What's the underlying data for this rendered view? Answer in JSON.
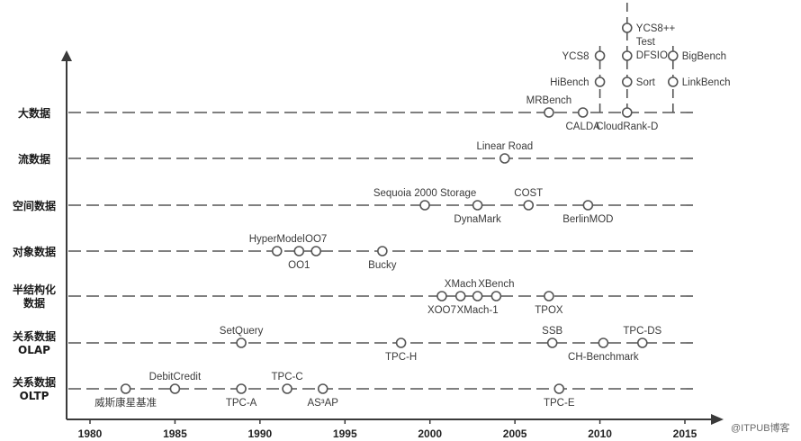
{
  "chart_data": {
    "type": "scatter",
    "x_axis": {
      "ticks": [
        1980,
        1985,
        1990,
        1995,
        2000,
        2005,
        2010,
        2015
      ]
    },
    "categories": [
      "大数据",
      "流数据",
      "空间数据",
      "对象数据",
      "半结构化\n数据",
      "关系数据\nOLAP",
      "关系数据\nOLTP"
    ],
    "benchmarks": [
      {
        "name": "MRBench",
        "category": 0,
        "year": 2007.0,
        "label_pos": "above"
      },
      {
        "name": "CALDA",
        "category": 0,
        "year": 2009.0,
        "label_pos": "below"
      },
      {
        "name": "HiBench",
        "category": 0,
        "year": 2010.0,
        "level": 1,
        "label_pos": "left"
      },
      {
        "name": "YCS8",
        "category": 0,
        "year": 2010.0,
        "level": 2,
        "label_pos": "left"
      },
      {
        "name": "CloudRank-D",
        "category": 0,
        "year": 2011.6,
        "label_pos": "below"
      },
      {
        "name": "Sort",
        "category": 0,
        "year": 2011.6,
        "level": 1,
        "label_pos": "right"
      },
      {
        "name": "Test\nDFSIO",
        "category": 0,
        "year": 2011.6,
        "level": 2,
        "label_pos": "right"
      },
      {
        "name": "YCS8++",
        "category": 0,
        "year": 2011.6,
        "level": 3,
        "label_pos": "right"
      },
      {
        "name": "LinkBench",
        "category": 0,
        "year": 2014.3,
        "level": 1,
        "label_pos": "right"
      },
      {
        "name": "BigBench",
        "category": 0,
        "year": 2014.3,
        "level": 2,
        "label_pos": "right"
      },
      {
        "name": "Linear Road",
        "category": 1,
        "year": 2004.4,
        "label_pos": "above"
      },
      {
        "name": "Sequoia 2000 Storage",
        "category": 2,
        "year": 1999.7,
        "label_pos": "above"
      },
      {
        "name": "DynaMark",
        "category": 2,
        "year": 2002.8,
        "label_pos": "below"
      },
      {
        "name": "COST",
        "category": 2,
        "year": 2005.8,
        "label_pos": "above"
      },
      {
        "name": "BerlinMOD",
        "category": 2,
        "year": 2009.3,
        "label_pos": "below"
      },
      {
        "name": "HyperModel",
        "category": 3,
        "year": 1991.0,
        "label_pos": "above"
      },
      {
        "name": "OO1",
        "category": 3,
        "year": 1992.3,
        "label_pos": "below"
      },
      {
        "name": "OO7",
        "category": 3,
        "year": 1993.3,
        "label_pos": "above"
      },
      {
        "name": "Bucky",
        "category": 3,
        "year": 1997.2,
        "label_pos": "below"
      },
      {
        "name": "XOO7",
        "category": 4,
        "year": 2000.7,
        "label_pos": "below"
      },
      {
        "name": "XMach",
        "category": 4,
        "year": 2001.8,
        "label_pos": "above"
      },
      {
        "name": "XMach-1",
        "category": 4,
        "year": 2002.8,
        "label_pos": "below"
      },
      {
        "name": "XBench",
        "category": 4,
        "year": 2003.9,
        "label_pos": "above"
      },
      {
        "name": "TPOX",
        "category": 4,
        "year": 2007.0,
        "label_pos": "below"
      },
      {
        "name": "SetQuery",
        "category": 5,
        "year": 1988.9,
        "label_pos": "above"
      },
      {
        "name": "TPC-H",
        "category": 5,
        "year": 1998.3,
        "label_pos": "below"
      },
      {
        "name": "SSB",
        "category": 5,
        "year": 2007.2,
        "label_pos": "above"
      },
      {
        "name": "CH-Benchmark",
        "category": 5,
        "year": 2010.2,
        "label_pos": "below"
      },
      {
        "name": "TPC-DS",
        "category": 5,
        "year": 2012.5,
        "label_pos": "above"
      },
      {
        "name": "威斯康星基准",
        "category": 6,
        "year": 1982.1,
        "label_pos": "below"
      },
      {
        "name": "DebitCredit",
        "category": 6,
        "year": 1985.0,
        "label_pos": "above"
      },
      {
        "name": "TPC-A",
        "category": 6,
        "year": 1988.9,
        "label_pos": "below"
      },
      {
        "name": "TPC-C",
        "category": 6,
        "year": 1991.6,
        "label_pos": "above"
      },
      {
        "name": "AS³AP",
        "category": 6,
        "year": 1993.7,
        "label_pos": "below"
      },
      {
        "name": "TPC-E",
        "category": 6,
        "year": 2007.6,
        "label_pos": "below"
      }
    ]
  },
  "watermark": "@ITPUB博客"
}
